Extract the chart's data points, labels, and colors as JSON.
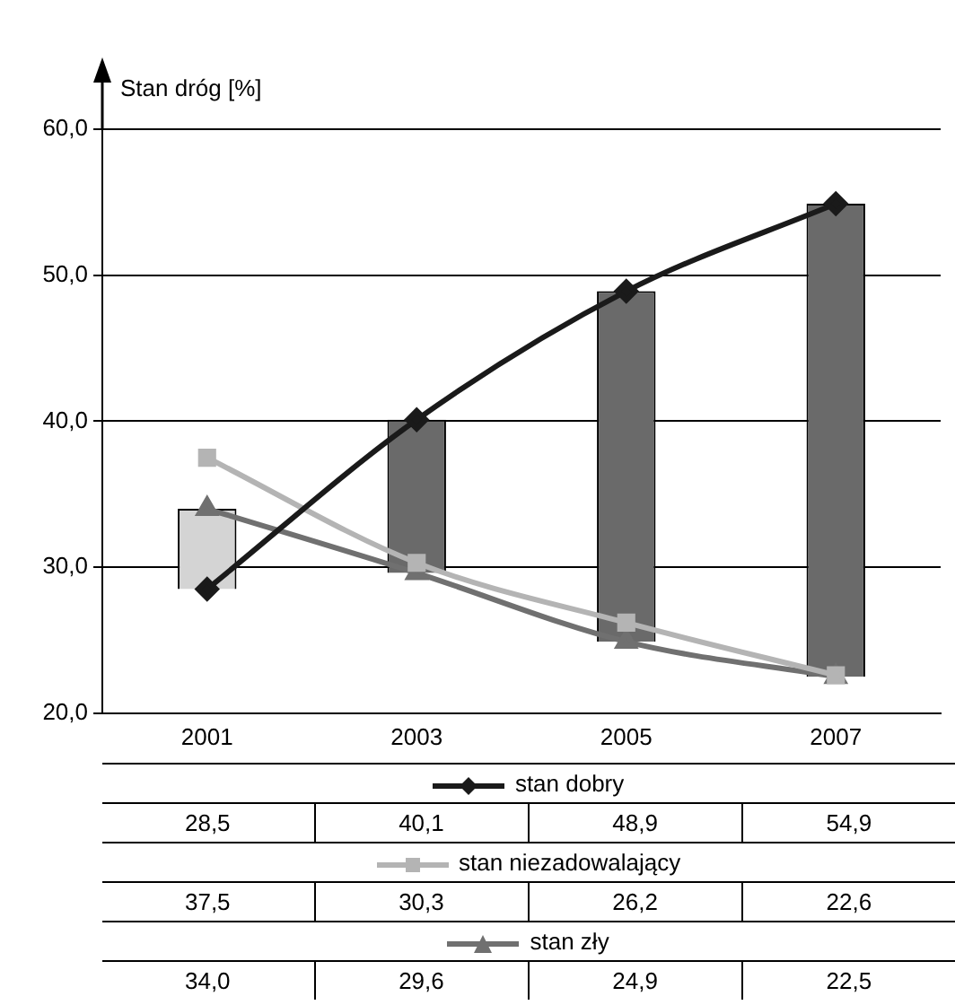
{
  "chart_data": {
    "type": "line",
    "ylabel": "Stan dróg [%]",
    "categories": [
      "2001",
      "2003",
      "2005",
      "2007"
    ],
    "ylim": [
      20,
      60
    ],
    "yticks": [
      {
        "value": 20,
        "label": "20,0"
      },
      {
        "value": 30,
        "label": "30,0"
      },
      {
        "value": 40,
        "label": "40,0"
      },
      {
        "value": 50,
        "label": "50,0"
      },
      {
        "value": 60,
        "label": "60,0"
      }
    ],
    "grid": "y",
    "legend": "bottom",
    "series": [
      {
        "type": "bar",
        "base": [
          28.5,
          29.6,
          24.9,
          22.5
        ],
        "values": [
          5.5,
          10.5,
          24.0,
          32.4
        ],
        "colors": [
          "#d4d4d4",
          "#6a6a6a",
          "#6a6a6a",
          "#6a6a6a"
        ],
        "value_labels": [
          null,
          null,
          null,
          null
        ]
      },
      {
        "name": "stan dobry",
        "color": "#1a1a1a",
        "marker": "diamond",
        "values": [
          28.5,
          40.1,
          48.9,
          54.9
        ],
        "value_labels": [
          "28,5",
          "40,1",
          "48,9",
          "54,9"
        ]
      },
      {
        "name": "stan niezadowalający",
        "color": "#b4b4b4",
        "marker": "square",
        "values": [
          37.5,
          30.3,
          26.2,
          22.6
        ],
        "value_labels": [
          "37,5",
          "30,3",
          "26,2",
          "22,6"
        ]
      },
      {
        "name": "stan zły",
        "color": "#707070",
        "marker": "triangle",
        "values": [
          34.0,
          29.6,
          24.9,
          22.5
        ],
        "value_labels": [
          "34,0",
          "29,6",
          "24,9",
          "22,5"
        ]
      }
    ]
  }
}
